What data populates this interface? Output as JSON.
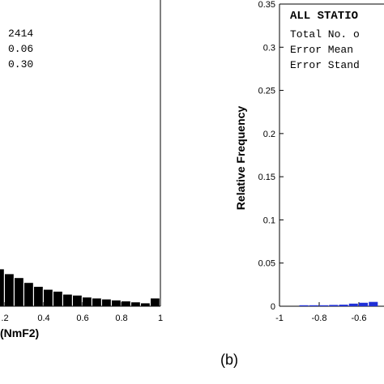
{
  "chart_data": [
    {
      "type": "bar",
      "panel": "left",
      "xlabel": "(NmF2)",
      "x_ticks": [
        ".2",
        "0.4",
        "0.6",
        "0.8",
        "1"
      ],
      "bins": [
        0.05,
        0.1,
        0.15,
        0.2,
        0.25,
        0.3,
        0.35,
        0.4,
        0.45,
        0.5,
        0.55,
        0.6,
        0.65,
        0.7,
        0.75,
        0.8,
        0.85,
        0.9,
        0.95,
        1.0
      ],
      "values": [
        0.052,
        0.049,
        0.044,
        0.038,
        0.033,
        0.029,
        0.024,
        0.02,
        0.017,
        0.015,
        0.012,
        0.011,
        0.009,
        0.008,
        0.007,
        0.006,
        0.005,
        0.004,
        0.003,
        0.008
      ],
      "stats_values": [
        "2414",
        "0.06",
        "0.30"
      ]
    },
    {
      "type": "bar",
      "panel": "right",
      "ylabel": "Relative Frequency",
      "y_ticks": [
        "0",
        "0.05",
        "0.1",
        "0.15",
        "0.2",
        "0.25",
        "0.3",
        "0.35"
      ],
      "x_ticks": [
        "-1",
        "-0.8",
        "-0.6"
      ],
      "bins": [
        -0.95,
        -0.9,
        -0.85,
        -0.8,
        -0.75,
        -0.7,
        -0.65,
        -0.6,
        -0.55,
        -0.5
      ],
      "values": [
        0.0,
        0.0,
        0.0007,
        0.0005,
        0.0008,
        0.0015,
        0.0018,
        0.003,
        0.004,
        0.005
      ],
      "stats_title": "ALL STATIO",
      "stats_lines": [
        "Total No. o",
        "Error Mean",
        "Error Stand"
      ]
    }
  ],
  "panel_label": "(b)",
  "colors": {
    "left_bars": "#000000",
    "right_bars": "#1f2fd6"
  }
}
